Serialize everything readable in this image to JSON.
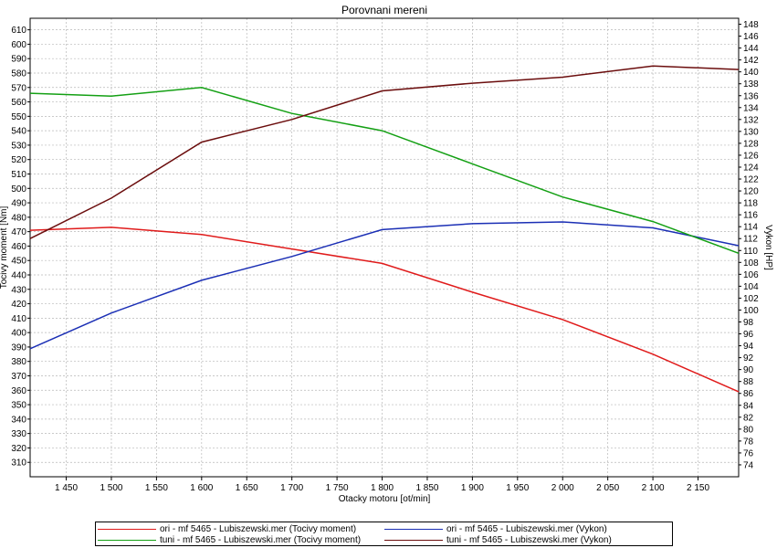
{
  "chart_data": {
    "type": "line",
    "title": "Porovnani mereni",
    "xlabel": "Otacky motoru [ot/min]",
    "ylabel": "Tocivy moment [Nm]",
    "y2label": "Vykon [HP]",
    "xlim": [
      1410,
      2195
    ],
    "ylim": [
      300,
      618
    ],
    "y2lim": [
      72,
      149
    ],
    "x_ticks": [
      1450,
      1500,
      1550,
      1600,
      1650,
      1700,
      1750,
      1800,
      1850,
      1900,
      1950,
      2000,
      2050,
      2100,
      2150
    ],
    "x_tick_labels": [
      "1 450",
      "1 500",
      "1 550",
      "1 600",
      "1 650",
      "1 700",
      "1 750",
      "1 800",
      "1 850",
      "1 900",
      "1 950",
      "2 000",
      "2 050",
      "2 100",
      "2 150"
    ],
    "y_ticks": [
      310,
      320,
      330,
      340,
      350,
      360,
      370,
      380,
      390,
      400,
      410,
      420,
      430,
      440,
      450,
      460,
      470,
      480,
      490,
      500,
      510,
      520,
      530,
      540,
      550,
      560,
      570,
      580,
      590,
      600,
      610
    ],
    "y2_ticks": [
      74,
      76,
      78,
      80,
      82,
      84,
      86,
      88,
      90,
      92,
      94,
      96,
      98,
      100,
      102,
      104,
      106,
      108,
      110,
      112,
      114,
      116,
      118,
      120,
      122,
      124,
      126,
      128,
      130,
      132,
      134,
      136,
      138,
      140,
      142,
      144,
      146,
      148
    ],
    "grid": true,
    "legend_position": "bottom",
    "series": [
      {
        "name": "ori - mf 5465 - Lubiszewski.mer  (Tocivy moment)",
        "axis": "left",
        "color": "#e01b1b",
        "x": [
          1410,
          1500,
          1600,
          1700,
          1800,
          1900,
          2000,
          2100,
          2195
        ],
        "y": [
          471,
          473,
          468,
          458,
          448,
          428,
          409,
          385,
          359
        ]
      },
      {
        "name": "ori - mf 5465 - Lubiszewski.mer  (Vykon)",
        "axis": "right",
        "color": "#1b2fb5",
        "x": [
          1410,
          1500,
          1600,
          1700,
          1800,
          1900,
          2000,
          2100,
          2195
        ],
        "y": [
          93.5,
          99.5,
          105.0,
          109.0,
          113.5,
          114.5,
          114.8,
          113.8,
          110.8
        ]
      },
      {
        "name": "tuni - mf 5465 - Lubiszewski.mer  (Tocivy moment)",
        "axis": "left",
        "color": "#14a014",
        "x": [
          1410,
          1500,
          1600,
          1700,
          1800,
          1900,
          2000,
          2100,
          2195
        ],
        "y": [
          566,
          564,
          570,
          552,
          540,
          517,
          494,
          477,
          455
        ]
      },
      {
        "name": "tuni - mf 5465 - Lubiszewski.mer  (Vykon)",
        "axis": "right",
        "color": "#6b0d0d",
        "x": [
          1410,
          1500,
          1600,
          1700,
          1800,
          1900,
          2000,
          2100,
          2195
        ],
        "y": [
          112.0,
          118.8,
          128.2,
          132.0,
          136.8,
          138.1,
          139.1,
          141.0,
          140.4
        ]
      }
    ]
  }
}
